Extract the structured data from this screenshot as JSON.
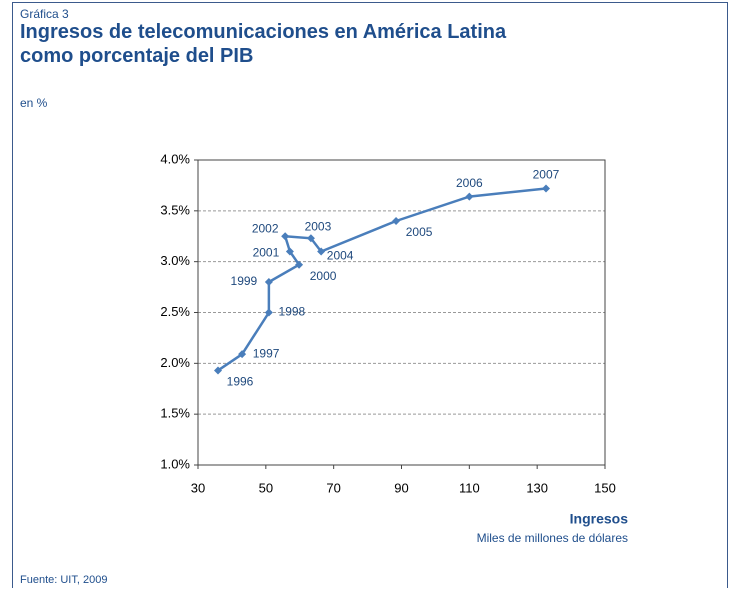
{
  "chart_data": {
    "type": "line",
    "header": "Gráfica 3",
    "title": "Ingresos de telecomunicaciones en América Latina como porcentaje del PIB",
    "subtitle": "en %",
    "x_label": "Ingresos",
    "x_sublabel": "Miles de millones de dólares",
    "source": "Fuente: UIT, 2009",
    "x": [
      35.9,
      43.0,
      50.9,
      50.9,
      59.8,
      57.1,
      55.7,
      63.3,
      66.3,
      88.4,
      110,
      132.6
    ],
    "values": [
      1.93,
      2.09,
      2.5,
      2.8,
      2.97,
      3.1,
      3.25,
      3.23,
      3.1,
      3.4,
      3.64,
      3.72
    ],
    "point_labels": [
      "1996",
      "1997",
      "1998",
      "1999",
      "2000",
      "2001",
      "2002",
      "2003",
      "2004",
      "2005",
      "2006",
      "2007"
    ],
    "color": "#4a7ebb",
    "xlim": [
      30,
      150
    ],
    "xticks": [
      30,
      50,
      70,
      90,
      110,
      130,
      150
    ],
    "ylim": [
      1.0,
      4.0
    ],
    "yticks": [
      {
        "value": 1.0,
        "label": "1.0%"
      },
      {
        "value": 1.5,
        "label": "1.5%"
      },
      {
        "value": 2.0,
        "label": "2.0%"
      },
      {
        "value": 2.5,
        "label": "2.5%"
      },
      {
        "value": 3.0,
        "label": "3.0%"
      },
      {
        "value": 3.5,
        "label": "3.5%"
      },
      {
        "value": 4.0,
        "label": "4.0%"
      }
    ],
    "grid": true
  }
}
